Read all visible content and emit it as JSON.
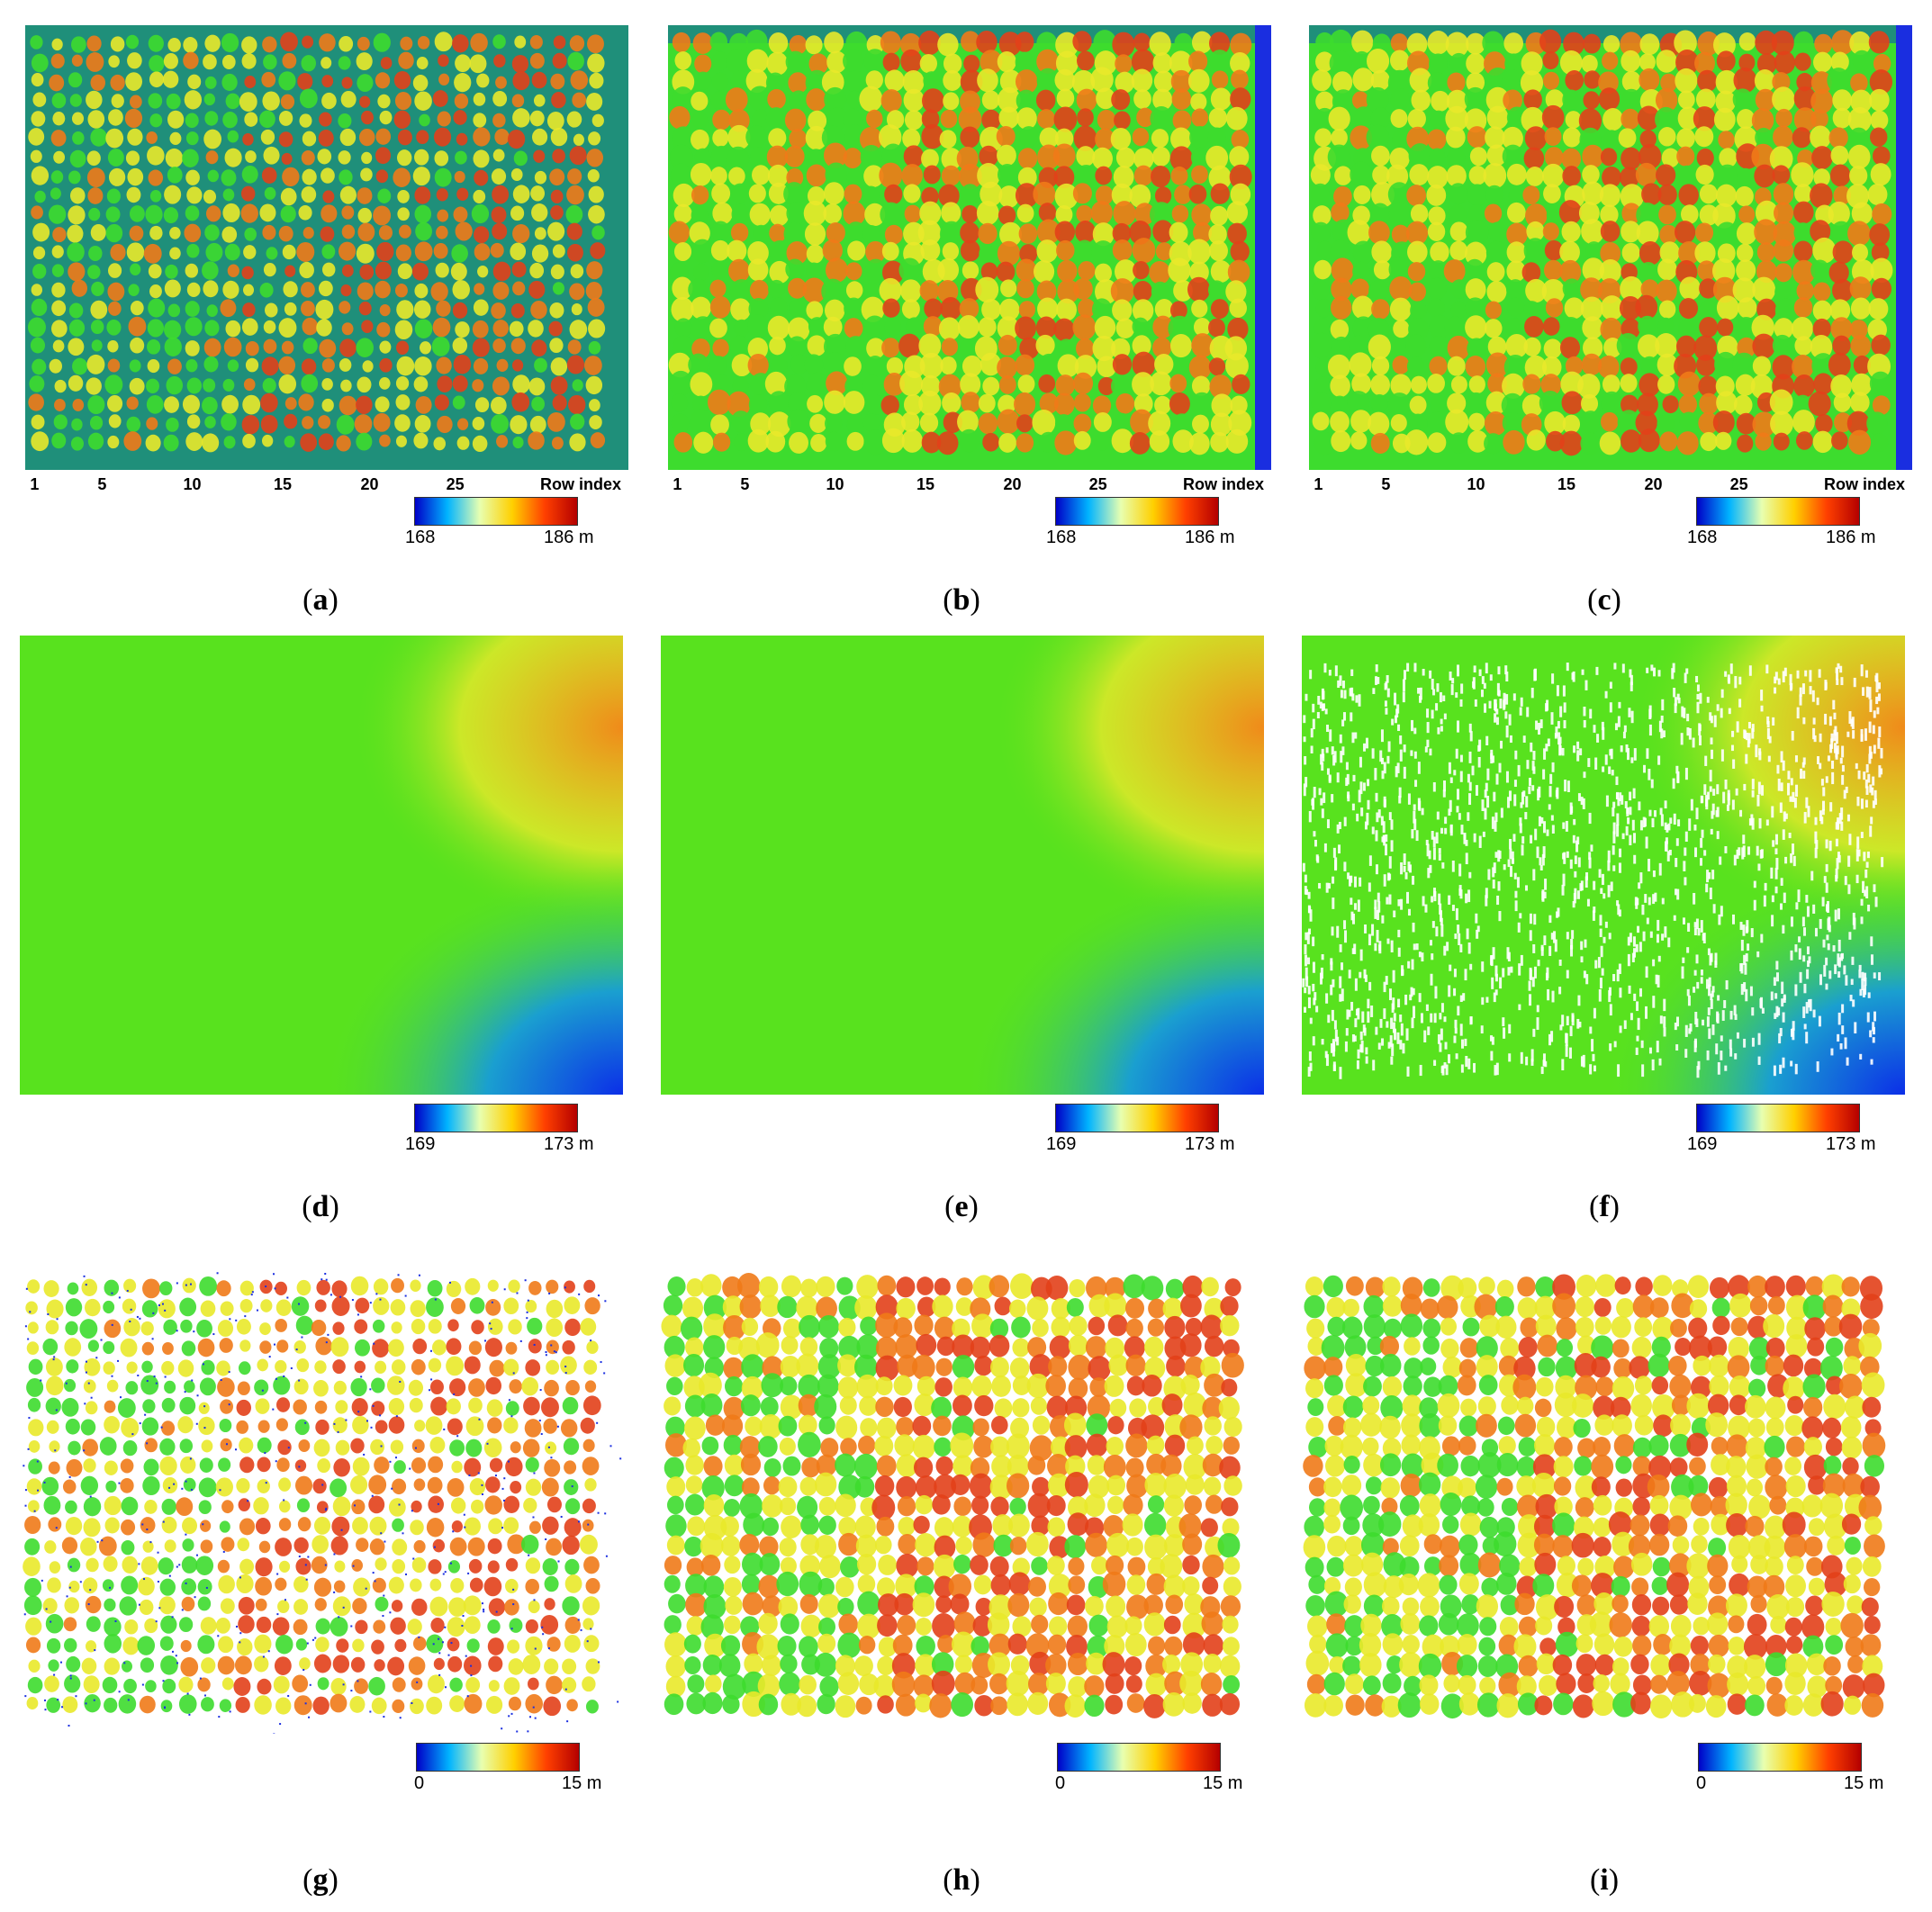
{
  "colors": {
    "field_edge": "#1f8f7a",
    "canopy_low": "#3ddc2e",
    "canopy_mid": "#e9e92a",
    "canopy_high": "#f07a18",
    "canopy_peak": "#e2401a",
    "terrain_green": "#58e21e",
    "terrain_high": "#f08a1a",
    "terrain_low": "#0b2ee8",
    "ground_blue": "#1a2ee0",
    "white": "#ffffff"
  },
  "colorbar_gradient": [
    "#0000c8",
    "#00b4ff",
    "#e8ffb0",
    "#ffd000",
    "#ff4000",
    "#b40000"
  ],
  "row_axis": {
    "ticks": [
      "1",
      "5",
      "10",
      "15",
      "20",
      "25"
    ],
    "label": "Row index"
  },
  "panels": [
    {
      "id": "a",
      "caption": "a",
      "kind": "dsm",
      "cbar_min": "168",
      "cbar_max": "186 m"
    },
    {
      "id": "b",
      "caption": "b",
      "kind": "dsm",
      "cbar_min": "168",
      "cbar_max": "186 m"
    },
    {
      "id": "c",
      "caption": "c",
      "kind": "dsm",
      "cbar_min": "168",
      "cbar_max": "186 m"
    },
    {
      "id": "d",
      "caption": "d",
      "kind": "dtm",
      "cbar_min": "169",
      "cbar_max": "173 m"
    },
    {
      "id": "e",
      "caption": "e",
      "kind": "dtm",
      "cbar_min": "169",
      "cbar_max": "173 m"
    },
    {
      "id": "f",
      "caption": "f",
      "kind": "dtm",
      "cbar_min": "169",
      "cbar_max": "173 m"
    },
    {
      "id": "g",
      "caption": "g",
      "kind": "chm",
      "cbar_min": "0",
      "cbar_max": "15 m"
    },
    {
      "id": "h",
      "caption": "h",
      "kind": "chm",
      "cbar_min": "0",
      "cbar_max": "15 m"
    },
    {
      "id": "i",
      "caption": "i",
      "kind": "chm",
      "cbar_min": "0",
      "cbar_max": "15 m"
    }
  ]
}
